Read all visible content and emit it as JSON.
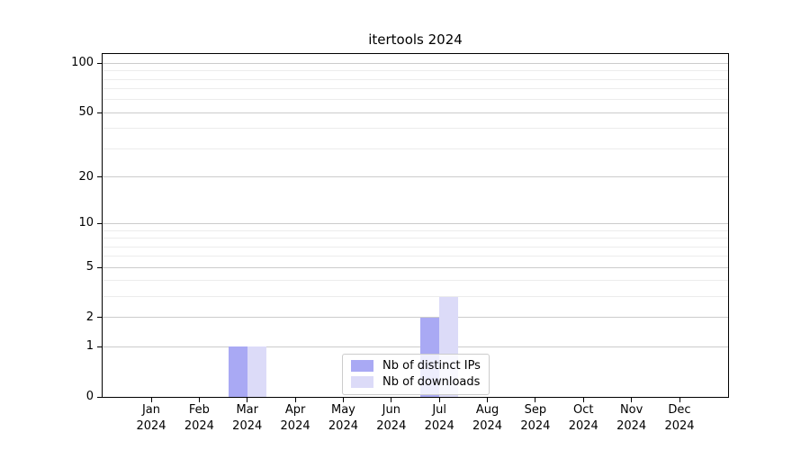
{
  "chart_data": {
    "type": "bar",
    "title": "itertools 2024",
    "categories": [
      "Jan 2024",
      "Feb 2024",
      "Mar 2024",
      "Apr 2024",
      "May 2024",
      "Jun 2024",
      "Jul 2024",
      "Aug 2024",
      "Sep 2024",
      "Oct 2024",
      "Nov 2024",
      "Dec 2024"
    ],
    "series": [
      {
        "name": "Nb of distinct IPs",
        "color": "#a9a9f4",
        "values": [
          0,
          0,
          1,
          0,
          0,
          0,
          2,
          0,
          0,
          0,
          0,
          0
        ]
      },
      {
        "name": "Nb of downloads",
        "color": "#dcdbf8",
        "values": [
          0,
          0,
          1,
          0,
          0,
          0,
          3,
          0,
          0,
          0,
          0,
          0
        ]
      }
    ],
    "xlabel": "",
    "ylabel": "",
    "yaxis": {
      "scale": "log(1+y)",
      "major_ticks": [
        0,
        1,
        2,
        5,
        10,
        20,
        50,
        100
      ],
      "minor_ticks": [
        3,
        4,
        6,
        7,
        8,
        9,
        30,
        40,
        60,
        70,
        80,
        90
      ],
      "ylim": [
        0,
        114
      ]
    },
    "grid": "on",
    "legend_position": "lower center inside",
    "colors": {
      "major_grid": "#cccccc",
      "minor_grid": "#ececec",
      "axis": "#000000",
      "legend_border": "#cccccc",
      "background": "#ffffff"
    }
  }
}
